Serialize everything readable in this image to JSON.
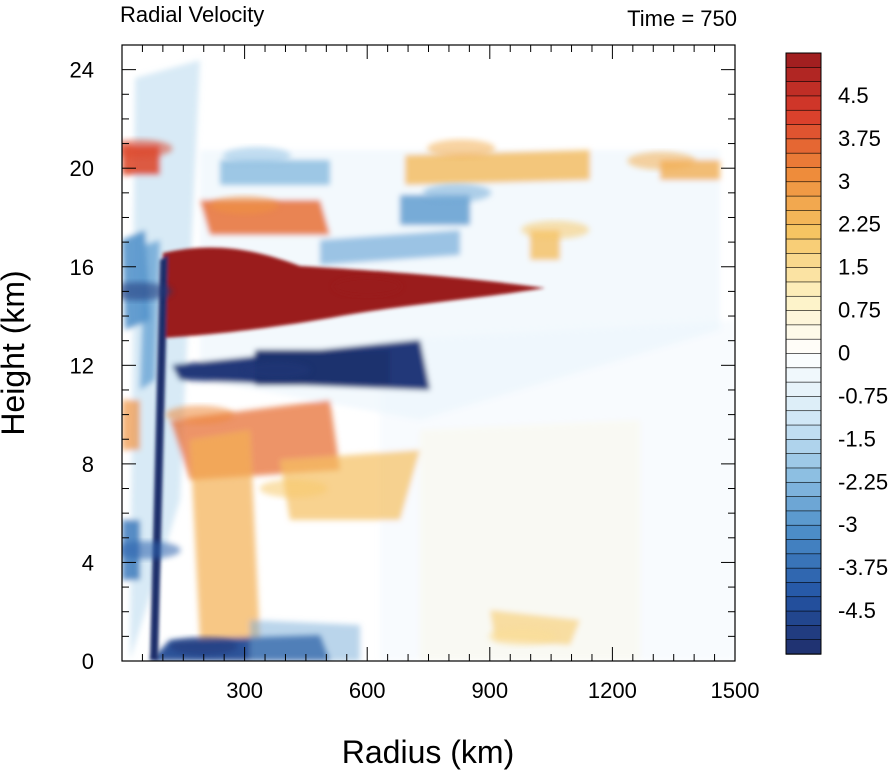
{
  "chart_data": {
    "type": "heatmap",
    "title": "Radial Velocity",
    "subtitle": "Time = 750",
    "xlabel": "Radius (km)",
    "ylabel": "Height (km)",
    "xlim": [
      0,
      1500
    ],
    "ylim": [
      0,
      25
    ],
    "x_ticks": [
      300,
      600,
      900,
      1200,
      1500
    ],
    "y_ticks": [
      0,
      4,
      8,
      12,
      16,
      20,
      24
    ],
    "colorbar": {
      "min": -5.25,
      "max": 5.25,
      "step": 0.25,
      "labels": [
        "4.5",
        "3.75",
        "3",
        "2.25",
        "1.5",
        "0.75",
        "0",
        "-0.75",
        "-1.5",
        "-2.25",
        "-3",
        "-3.75",
        "-4.5"
      ],
      "colors_low_to_high": [
        "#1f2e6b",
        "#2456a6",
        "#4a8cc7",
        "#8fc0e3",
        "#d6eaf7",
        "#ffffff",
        "#fdf0c0",
        "#f6c563",
        "#ee8b3a",
        "#d93b2b",
        "#9a1b1e"
      ]
    },
    "features": [
      {
        "x": 600,
        "y": 15.2,
        "value": 5.25,
        "desc": "upper-level outflow jet"
      },
      {
        "x": 380,
        "y": 11.8,
        "value": -5.0
      },
      {
        "x": 190,
        "y": 10.0,
        "value": 3.2
      },
      {
        "x": 420,
        "y": 7.0,
        "value": 2.0
      },
      {
        "x": 300,
        "y": 18.5,
        "value": 3.0
      },
      {
        "x": 330,
        "y": 20.5,
        "value": -2.0
      },
      {
        "x": 820,
        "y": 19.0,
        "value": -2.5
      },
      {
        "x": 830,
        "y": 20.8,
        "value": 2.5
      },
      {
        "x": 1320,
        "y": 20.3,
        "value": 2.5
      },
      {
        "x": 1060,
        "y": 17.5,
        "value": 2.0
      },
      {
        "x": 200,
        "y": 0.6,
        "value": -5.0
      },
      {
        "x": 980,
        "y": 1.0,
        "value": 1.5
      },
      {
        "x": 40,
        "y": 15.0,
        "value": -5.0
      },
      {
        "x": 40,
        "y": 20.8,
        "value": 4.0
      },
      {
        "x": 60,
        "y": 4.5,
        "value": -4.0
      }
    ]
  }
}
